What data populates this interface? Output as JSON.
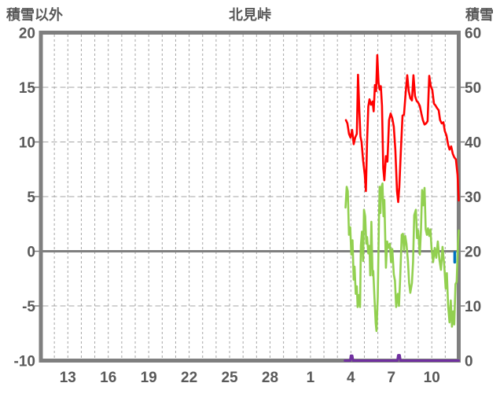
{
  "header": {
    "left_axis_title": "積雪以外",
    "chart_title": "北見峠",
    "right_axis_title": "積雪"
  },
  "colors": {
    "frame": "#7f7f7f",
    "grid": "#a6a6a6",
    "text": "#595959",
    "zero_line": "#7f7f7f",
    "red": "#ff0000",
    "green": "#92d050",
    "purple": "#7030a0",
    "blue": "#0070c0"
  },
  "chart_data": {
    "type": "line",
    "title": "北見峠",
    "left_axis": {
      "title": "積雪以外",
      "range": [
        -10,
        20
      ],
      "ticks": [
        20,
        15,
        10,
        5,
        0,
        -5,
        -10
      ],
      "grid_values": [
        15,
        10,
        5,
        -5
      ]
    },
    "right_axis": {
      "title": "積雪",
      "range": [
        0,
        60
      ],
      "ticks": [
        60,
        50,
        40,
        30,
        20,
        10,
        0
      ]
    },
    "x_axis": {
      "days_total": 31,
      "minor_grid_step_days": 1,
      "ticks": [
        {
          "d": 2,
          "label": "13"
        },
        {
          "d": 5,
          "label": "16"
        },
        {
          "d": 8,
          "label": "19"
        },
        {
          "d": 11,
          "label": "22"
        },
        {
          "d": 14,
          "label": "25"
        },
        {
          "d": 17,
          "label": "28"
        },
        {
          "d": 20,
          "label": "1"
        },
        {
          "d": 23,
          "label": "4"
        },
        {
          "d": 26,
          "label": "7"
        },
        {
          "d": 29,
          "label": "10"
        }
      ]
    },
    "series": [
      {
        "id": "red-line",
        "axis": "right",
        "color": "#ff0000",
        "width": 2.6,
        "points": [
          [
            22.63,
            44
          ],
          [
            22.74,
            43.4
          ],
          [
            22.86,
            41.5
          ],
          [
            22.97,
            40.8
          ],
          [
            23.09,
            42.2
          ],
          [
            23.21,
            39.6
          ],
          [
            23.32,
            40.8
          ],
          [
            23.44,
            41.5
          ],
          [
            23.53,
            52.3
          ],
          [
            23.62,
            46
          ],
          [
            23.71,
            41
          ],
          [
            23.79,
            40
          ],
          [
            23.91,
            36.6
          ],
          [
            24.03,
            34
          ],
          [
            24.11,
            31
          ],
          [
            24.2,
            40
          ],
          [
            24.29,
            46.5
          ],
          [
            24.38,
            47.8
          ],
          [
            24.49,
            46.8
          ],
          [
            24.61,
            47.4
          ],
          [
            24.69,
            45.6
          ],
          [
            24.78,
            50.4
          ],
          [
            24.87,
            49.3
          ],
          [
            24.96,
            55.9
          ],
          [
            25.05,
            50.8
          ],
          [
            25.13,
            49.6
          ],
          [
            25.22,
            50.2
          ],
          [
            25.31,
            46.6
          ],
          [
            25.4,
            35.2
          ],
          [
            25.48,
            33
          ],
          [
            25.6,
            37.4
          ],
          [
            25.71,
            36.4
          ],
          [
            25.83,
            44
          ],
          [
            25.95,
            45.2
          ],
          [
            26.07,
            44.3
          ],
          [
            26.18,
            42.8
          ],
          [
            26.3,
            38.5
          ],
          [
            26.42,
            31
          ],
          [
            26.51,
            29
          ],
          [
            26.59,
            31.7
          ],
          [
            26.71,
            38.4
          ],
          [
            26.83,
            44.8
          ],
          [
            26.94,
            45
          ],
          [
            27.06,
            48.8
          ],
          [
            27.18,
            52.2
          ],
          [
            27.29,
            49.3
          ],
          [
            27.41,
            48
          ],
          [
            27.53,
            47.6
          ],
          [
            27.64,
            52.2
          ],
          [
            27.76,
            48.4
          ],
          [
            27.88,
            47.5
          ],
          [
            27.99,
            47.2
          ],
          [
            28.11,
            46.6
          ],
          [
            28.23,
            45.2
          ],
          [
            28.34,
            44
          ],
          [
            28.46,
            43.2
          ],
          [
            28.58,
            43.4
          ],
          [
            28.69,
            43.8
          ],
          [
            28.81,
            52.1
          ],
          [
            28.92,
            50.3
          ],
          [
            29.04,
            49.5
          ],
          [
            29.16,
            47
          ],
          [
            29.27,
            46.7
          ],
          [
            29.39,
            46.2
          ],
          [
            29.51,
            45.8
          ],
          [
            29.62,
            44
          ],
          [
            29.74,
            43.4
          ],
          [
            29.86,
            43.6
          ],
          [
            29.97,
            42
          ],
          [
            30.09,
            41.2
          ],
          [
            30.21,
            39.5
          ],
          [
            30.32,
            38.6
          ],
          [
            30.44,
            39.2
          ],
          [
            30.56,
            37.8
          ],
          [
            30.67,
            37.2
          ],
          [
            30.79,
            36.8
          ],
          [
            30.91,
            34
          ],
          [
            31,
            29.3
          ]
        ]
      },
      {
        "id": "green-line",
        "axis": "left",
        "color": "#92d050",
        "width": 2.6,
        "points": [
          [
            22.6,
            4.0
          ],
          [
            22.69,
            5.9
          ],
          [
            22.77,
            5.5
          ],
          [
            22.86,
            1.5
          ],
          [
            22.95,
            2.2
          ],
          [
            23.03,
            -0.3
          ],
          [
            23.12,
            1.0
          ],
          [
            23.21,
            -2.6
          ],
          [
            23.27,
            -1.4
          ],
          [
            23.36,
            -3.9
          ],
          [
            23.44,
            -3.2
          ],
          [
            23.5,
            -5.1
          ],
          [
            23.59,
            -4.0
          ],
          [
            23.68,
            -5.1
          ],
          [
            23.74,
            0.5
          ],
          [
            23.82,
            1.8
          ],
          [
            23.91,
            -0.9
          ],
          [
            23.97,
            3.8
          ],
          [
            24.06,
            3.2
          ],
          [
            24.14,
            0.7
          ],
          [
            24.2,
            1.3
          ],
          [
            24.29,
            -0.2
          ],
          [
            24.38,
            0.5
          ],
          [
            24.43,
            -2.2
          ],
          [
            24.52,
            2.7
          ],
          [
            24.61,
            -2.2
          ],
          [
            24.66,
            -1.8
          ],
          [
            24.75,
            -4.2
          ],
          [
            24.84,
            -6.6
          ],
          [
            24.9,
            -7.3
          ],
          [
            24.99,
            -4.2
          ],
          [
            25.08,
            2.7
          ],
          [
            25.13,
            5.9
          ],
          [
            25.19,
            3.5
          ],
          [
            25.25,
            5.8
          ],
          [
            25.34,
            6.2
          ],
          [
            25.42,
            3.2
          ],
          [
            25.48,
            4.7
          ],
          [
            25.6,
            -1.5
          ],
          [
            25.69,
            0.9
          ],
          [
            25.77,
            0.3
          ],
          [
            25.89,
            0.7
          ],
          [
            25.98,
            -1.0
          ],
          [
            26.07,
            0.2
          ],
          [
            26.18,
            -2.1
          ],
          [
            26.27,
            -2.7
          ],
          [
            26.36,
            -5.1
          ],
          [
            26.48,
            -3.9
          ],
          [
            26.57,
            -5.0
          ],
          [
            26.65,
            -2.7
          ],
          [
            26.77,
            1.5
          ],
          [
            26.86,
            1.6
          ],
          [
            26.94,
            0.1
          ],
          [
            27.03,
            1.4
          ],
          [
            27.12,
            0.7
          ],
          [
            27.23,
            -0.9
          ],
          [
            27.32,
            -2.9
          ],
          [
            27.41,
            -3.8
          ],
          [
            27.53,
            -2.9
          ],
          [
            27.61,
            -1.0
          ],
          [
            27.7,
            3.3
          ],
          [
            27.82,
            3.8
          ],
          [
            27.91,
            1.2
          ],
          [
            27.99,
            1.9
          ],
          [
            28.11,
            -0.3
          ],
          [
            28.2,
            2.0
          ],
          [
            28.28,
            5.6
          ],
          [
            28.37,
            4.2
          ],
          [
            28.46,
            5.8
          ],
          [
            28.55,
            2.0
          ],
          [
            28.64,
            1.5
          ],
          [
            28.72,
            2.1
          ],
          [
            28.81,
            1.4
          ],
          [
            28.9,
            2.0
          ],
          [
            28.98,
            0.3
          ],
          [
            29.1,
            -1.0
          ],
          [
            29.22,
            0.3
          ],
          [
            29.33,
            -0.6
          ],
          [
            29.45,
            0.9
          ],
          [
            29.57,
            -0.8
          ],
          [
            29.68,
            -1.7
          ],
          [
            29.8,
            0.4
          ],
          [
            29.92,
            -1.2
          ],
          [
            30.03,
            -3.4
          ],
          [
            30.12,
            -2.0
          ],
          [
            30.21,
            -5.0
          ],
          [
            30.32,
            -6.5
          ],
          [
            30.41,
            -4.5
          ],
          [
            30.5,
            -6.9
          ],
          [
            30.59,
            -5.5
          ],
          [
            30.67,
            -6.7
          ],
          [
            30.76,
            -3.0
          ],
          [
            30.85,
            -2.8
          ],
          [
            30.94,
            0.7
          ],
          [
            31,
            1.9
          ]
        ]
      },
      {
        "id": "purple-line",
        "axis": "right",
        "color": "#7030a0",
        "width": 3,
        "points": [
          [
            22.55,
            0
          ],
          [
            22.95,
            0
          ],
          [
            23.0,
            0.9
          ],
          [
            23.1,
            0.9
          ],
          [
            23.16,
            0
          ],
          [
            26.45,
            0
          ],
          [
            26.51,
            1.0
          ],
          [
            26.62,
            1.0
          ],
          [
            26.68,
            0
          ],
          [
            31,
            0
          ]
        ]
      },
      {
        "id": "blue-mark",
        "axis": "left",
        "color": "#0070c0",
        "width": 3.5,
        "points": [
          [
            30.7,
            -0.1
          ],
          [
            30.7,
            -1.0
          ]
        ]
      }
    ]
  }
}
